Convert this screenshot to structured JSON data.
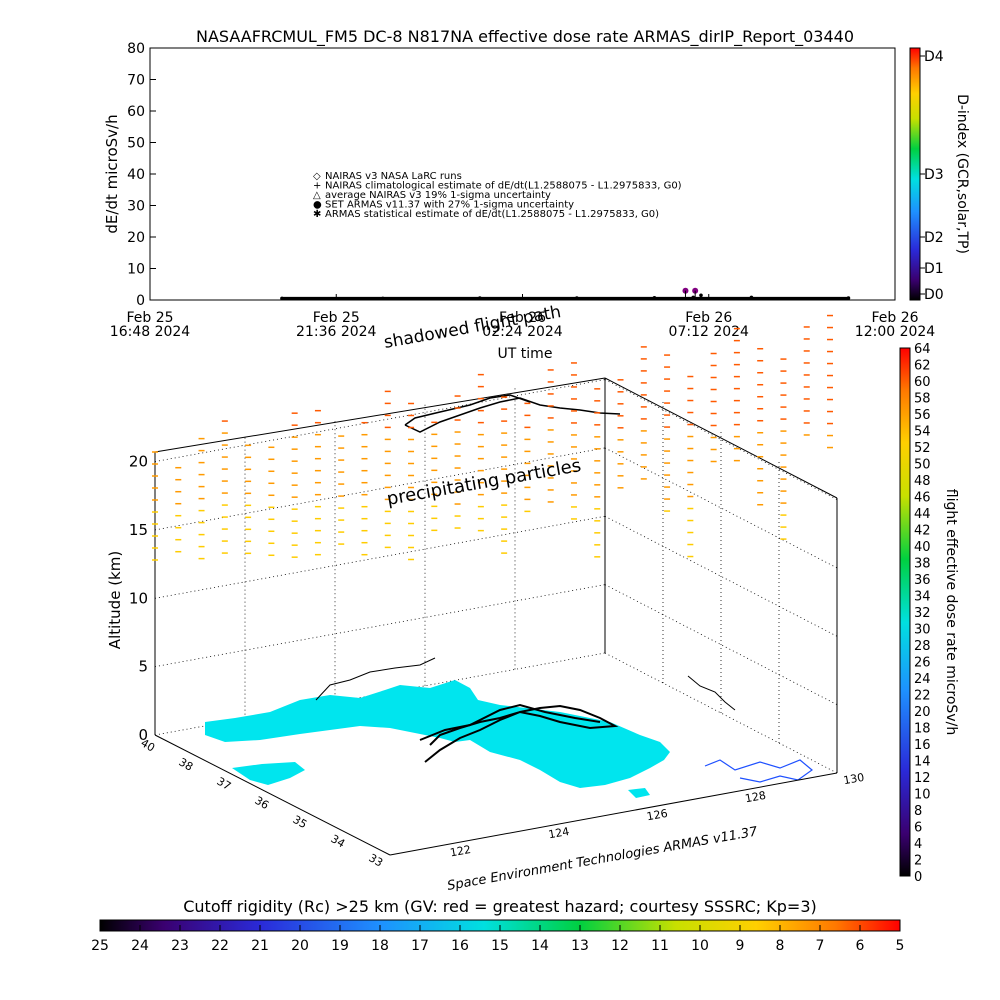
{
  "title": "NASAAFRCMUL_FM5 DC-8    N817NA effective dose rate ARMAS_dirIP_Report_03440",
  "top_plot": {
    "ylabel": "dE/dt microSv/h",
    "yticks": [
      "0",
      "10",
      "20",
      "30",
      "40",
      "50",
      "60",
      "70",
      "80"
    ],
    "xticks": [
      {
        "date": "Feb 25",
        "time": "16:48 2024"
      },
      {
        "date": "Feb 25",
        "time": "21:36 2024"
      },
      {
        "date": "Feb 26",
        "time": "02:24 2024"
      },
      {
        "date": "Feb 26",
        "time": "07:12 2024"
      },
      {
        "date": "Feb 26",
        "time": "12:00 2024"
      }
    ],
    "xlabel": "UT time",
    "legend": [
      {
        "symbol": "◇",
        "text": "NAIRAS v3 NASA LaRC runs"
      },
      {
        "symbol": "+",
        "text": "NAIRAS climatological estimate of dE/dt(L1.2588075 - L1.2975833, G0)"
      },
      {
        "symbol": "△",
        "text": "average NAIRAS v3 19% 1-sigma uncertainty"
      },
      {
        "symbol": "●",
        "text": "SET ARMAS v11.37 with 27% 1-sigma uncertainty"
      },
      {
        "symbol": "✱",
        "text": "ARMAS statistical estimate of dE/dt(L1.2588075 - L1.2975833, G0)"
      }
    ],
    "right_axis_label": "D-index (GCR,solar,TP)",
    "right_ticks": [
      "D0",
      "D1",
      "D2",
      "D3",
      "D4"
    ]
  },
  "chart_data": [
    {
      "type": "scatter",
      "title": "NASAAFRCMUL_FM5 DC-8    N817NA effective dose rate ARMAS_dirIP_Report_03440",
      "xlabel": "UT time",
      "ylabel": "dE/dt microSv/h",
      "ylim": [
        0,
        80
      ],
      "xlim": [
        "Feb 25 16:48 2024",
        "Feb 26 12:00 2024"
      ],
      "series": [
        {
          "name": "SET ARMAS v11.37 with 27% 1-sigma uncertainty",
          "x_hours_from_feb25_1648": [
            3.4,
            6.0,
            8.5,
            11.0,
            13.0,
            14.0,
            14.2,
            15.5,
            18.0
          ],
          "values": [
            0.5,
            0.5,
            0.6,
            0.6,
            0.7,
            0.8,
            1.5,
            0.8,
            0.6
          ]
        }
      ],
      "highlight_points": [
        {
          "x_hours_from_feb25_1648": 13.8,
          "value": 2
        },
        {
          "x_hours_from_feb25_1648": 14.05,
          "value": 2
        }
      ]
    },
    {
      "type": "3d-track",
      "title": "",
      "zlabel": "Altitude (km)",
      "zticks": [
        0,
        5,
        10,
        15,
        20
      ],
      "lat_ticks": [
        33,
        34,
        35,
        36,
        37,
        38,
        40
      ],
      "lon_ticks": [
        122,
        124,
        126,
        128,
        130
      ],
      "annotations": [
        "shadowed flight path",
        "precipitating particles"
      ],
      "colorbar_label": "flight effective dose rate microSv/h",
      "colorbar_ticks": [
        0,
        2,
        4,
        6,
        8,
        10,
        12,
        14,
        16,
        18,
        20,
        22,
        24,
        26,
        28,
        30,
        32,
        34,
        36,
        38,
        40,
        42,
        44,
        46,
        48,
        50,
        52,
        54,
        56,
        58,
        60,
        62,
        64
      ],
      "footer": "Space Environment Technologies ARMAS v11.37"
    }
  ],
  "bottom_bar": {
    "label": "Cutoff rigidity (Rc) >25 km (GV: red = greatest hazard; courtesy SSSRC; Kp=3)",
    "ticks": [
      "25",
      "24",
      "23",
      "22",
      "21",
      "20",
      "19",
      "18",
      "17",
      "16",
      "15",
      "14",
      "13",
      "12",
      "11",
      "10",
      "9",
      "8",
      "7",
      "6",
      "5"
    ]
  },
  "colors": {
    "land": "#00e5ee",
    "track": "#000000",
    "grid": "#000000"
  }
}
